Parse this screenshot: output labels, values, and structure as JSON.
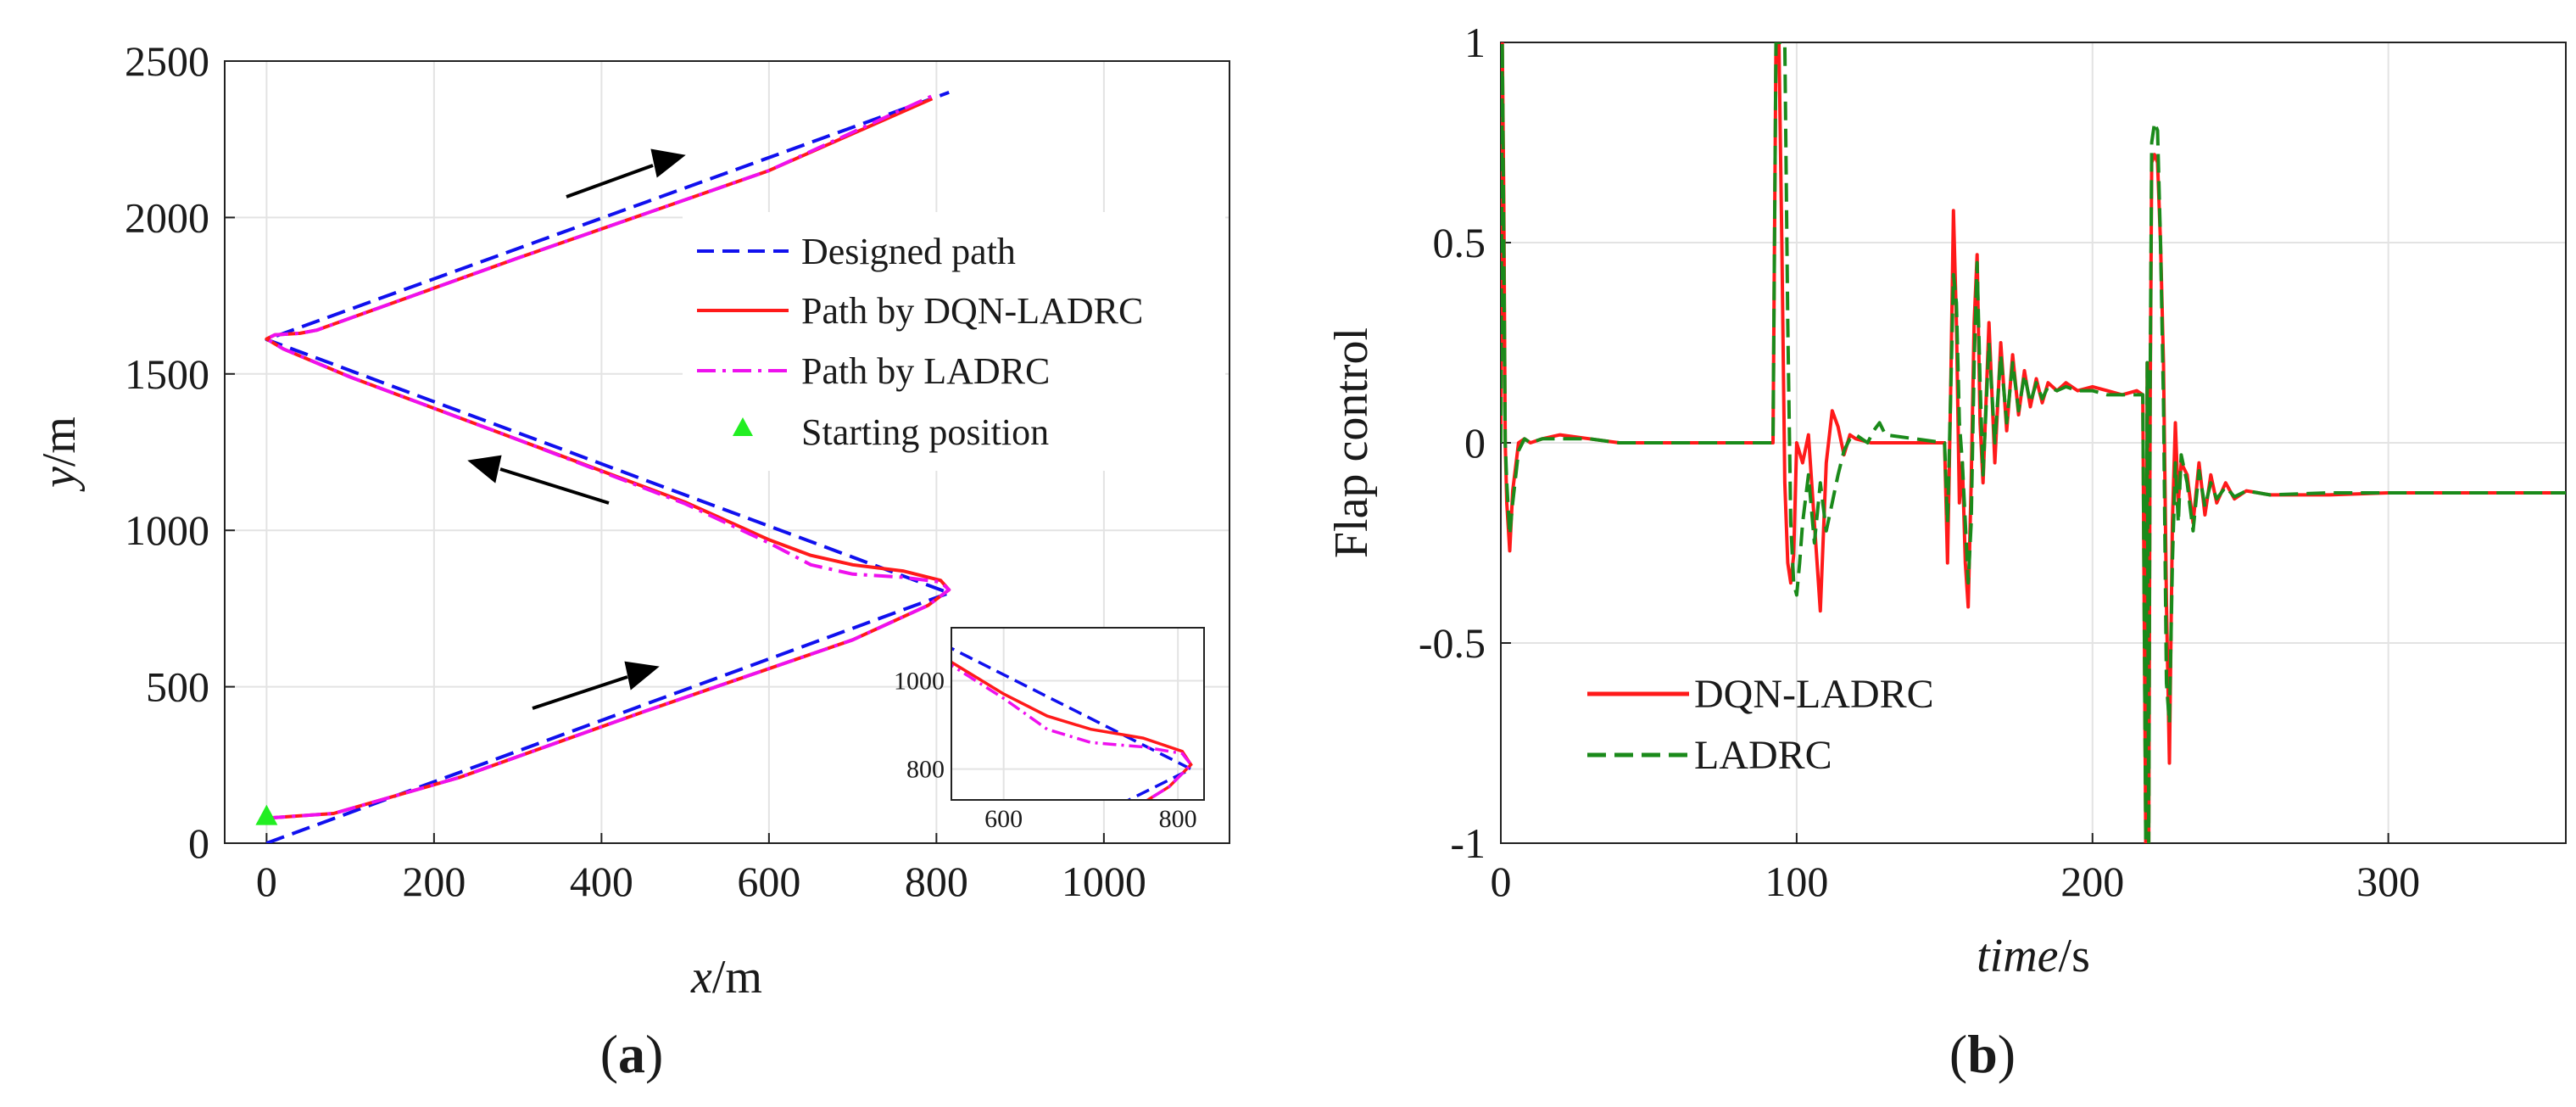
{
  "chart_data": [
    {
      "type": "line",
      "panel_label": "(a)",
      "xlabel": "x/m",
      "ylabel": "y/m",
      "xlim": [
        -50,
        1150
      ],
      "ylim": [
        0,
        2500
      ],
      "xticks": [
        0,
        200,
        400,
        600,
        800,
        1000
      ],
      "yticks": [
        0,
        500,
        1000,
        1500,
        2000,
        2500
      ],
      "grid": true,
      "legend_position": "right",
      "series": [
        {
          "name": "Designed path",
          "style": "dashed",
          "color": "#1010ee",
          "x": [
            0,
            815,
            0,
            815
          ],
          "y": [
            0,
            800,
            1610,
            2400
          ]
        },
        {
          "name": "Path by DQN-LADRC",
          "style": "solid",
          "color": "#ff1a1a",
          "x": [
            0,
            80,
            230,
            450,
            700,
            790,
            815,
            805,
            760,
            700,
            650,
            600,
            500,
            300,
            100,
            20,
            0,
            10,
            40,
            60,
            300,
            600,
            795
          ],
          "y": [
            80,
            95,
            210,
            420,
            650,
            760,
            810,
            840,
            870,
            890,
            920,
            970,
            1090,
            1290,
            1490,
            1580,
            1612,
            1625,
            1630,
            1640,
            1870,
            2150,
            2380
          ]
        },
        {
          "name": "Path by LADRC",
          "style": "dashdot",
          "color": "#ee10ee",
          "x": [
            0,
            80,
            230,
            450,
            700,
            790,
            815,
            805,
            760,
            700,
            650,
            600,
            500,
            300,
            100,
            20,
            0,
            10,
            40,
            60,
            300,
            600,
            800
          ],
          "y": [
            80,
            95,
            210,
            420,
            650,
            760,
            810,
            835,
            850,
            860,
            890,
            960,
            1085,
            1290,
            1490,
            1580,
            1612,
            1625,
            1630,
            1640,
            1870,
            2150,
            2395
          ]
        },
        {
          "name": "Starting position",
          "style": "marker",
          "marker": "triangle",
          "color": "#22ee22",
          "x": [
            0
          ],
          "y": [
            85
          ]
        }
      ],
      "inset": {
        "xlim": [
          540,
          830
        ],
        "ylim": [
          730,
          1120
        ],
        "xticks": [
          600,
          800
        ],
        "yticks": [
          800,
          1000
        ]
      }
    },
    {
      "type": "line",
      "panel_label": "(b)",
      "xlabel": "time/s",
      "ylabel": "Flap control",
      "xlim": [
        0,
        360
      ],
      "ylim": [
        -1,
        1
      ],
      "xticks": [
        0,
        100,
        200,
        300
      ],
      "yticks": [
        -1,
        -0.5,
        0,
        0.5,
        1
      ],
      "grid": true,
      "legend_position": "bottom-left",
      "series": [
        {
          "name": "DQN-LADRC",
          "style": "solid",
          "color": "#ff1a1a",
          "x": [
            0,
            0.5,
            1,
            1.5,
            2,
            3,
            4,
            6,
            8,
            10,
            14,
            20,
            30,
            40,
            92,
            93,
            94,
            95,
            96,
            97,
            98,
            99,
            100,
            102,
            104,
            106,
            108,
            110,
            112,
            114,
            116,
            118,
            120,
            125,
            150,
            151,
            152,
            153,
            154,
            155,
            156,
            157,
            158,
            159,
            160,
            161,
            162,
            163,
            165,
            167,
            169,
            171,
            173,
            175,
            177,
            179,
            181,
            183,
            185,
            188,
            191,
            195,
            200,
            205,
            210,
            215,
            217,
            218,
            218.5,
            219,
            219.5,
            220,
            221,
            222,
            223,
            224,
            225,
            226,
            227,
            228,
            229,
            230,
            232,
            234,
            236,
            238,
            240,
            242,
            245,
            248,
            252,
            260,
            280,
            300,
            330,
            360
          ],
          "y": [
            0,
            1,
            0.6,
            0,
            -0.15,
            -0.27,
            -0.12,
            0,
            0.01,
            0,
            0.01,
            0.02,
            0.01,
            0,
            0,
            1,
            1,
            0.5,
            -0.1,
            -0.3,
            -0.35,
            -0.28,
            0,
            -0.05,
            0.02,
            -0.2,
            -0.42,
            -0.05,
            0.08,
            0.04,
            -0.03,
            0.02,
            0.01,
            0,
            0,
            -0.3,
            0.1,
            0.58,
            0.3,
            -0.15,
            -0.05,
            -0.3,
            -0.41,
            -0.1,
            0.3,
            0.47,
            0.05,
            -0.1,
            0.3,
            -0.05,
            0.25,
            0.03,
            0.22,
            0.07,
            0.18,
            0.09,
            0.16,
            0.1,
            0.15,
            0.13,
            0.15,
            0.13,
            0.14,
            0.13,
            0.12,
            0.13,
            0.12,
            -1,
            0.2,
            -1,
            0.1,
            0.7,
            0.72,
            0.7,
            0.5,
            0.2,
            -0.4,
            -0.8,
            -0.2,
            0.05,
            -0.15,
            -0.05,
            -0.08,
            -0.2,
            -0.05,
            -0.18,
            -0.08,
            -0.15,
            -0.1,
            -0.14,
            -0.12,
            -0.13,
            -0.13,
            -0.125,
            -0.125,
            -0.125
          ]
        },
        {
          "name": "LADRC",
          "style": "dashed",
          "color": "#1a8a1a",
          "x": [
            0,
            0.5,
            1,
            1.5,
            2,
            3,
            4,
            6,
            8,
            10,
            14,
            20,
            30,
            40,
            92,
            93,
            94,
            96,
            97,
            98,
            99,
            100,
            101,
            102,
            104,
            106,
            108,
            110,
            112,
            114,
            116,
            118,
            120,
            122,
            124,
            126,
            128,
            130,
            150,
            151,
            152,
            153,
            154,
            155,
            156,
            157,
            158,
            159,
            160,
            161,
            162,
            163,
            165,
            167,
            169,
            171,
            173,
            175,
            177,
            179,
            181,
            183,
            185,
            188,
            191,
            195,
            200,
            205,
            210,
            215,
            217,
            218,
            218.5,
            219,
            219.5,
            220,
            221,
            222,
            223,
            224,
            225,
            226,
            227,
            228,
            229,
            230,
            232,
            234,
            236,
            238,
            240,
            242,
            245,
            248,
            252,
            260,
            280,
            300,
            330,
            360
          ],
          "y": [
            0,
            1,
            0.5,
            0,
            -0.1,
            -0.23,
            -0.15,
            -0.02,
            0.01,
            0,
            0.01,
            0.01,
            0.01,
            0,
            0,
            1,
            1,
            1,
            0.3,
            -0.2,
            -0.35,
            -0.38,
            -0.3,
            -0.2,
            -0.08,
            -0.25,
            -0.1,
            -0.22,
            -0.15,
            -0.08,
            -0.02,
            0.01,
            0.02,
            0.01,
            0,
            0.03,
            0.05,
            0.02,
            0,
            -0.2,
            0.1,
            0.42,
            0.35,
            0.05,
            -0.05,
            -0.2,
            -0.35,
            -0.2,
            0.2,
            0.45,
            0.15,
            -0.08,
            0.25,
            0,
            0.22,
            0.05,
            0.2,
            0.08,
            0.17,
            0.1,
            0.15,
            0.11,
            0.14,
            0.13,
            0.14,
            0.13,
            0.13,
            0.12,
            0.12,
            0.12,
            0.12,
            -1,
            0.2,
            -1,
            0.15,
            0.75,
            0.8,
            0.78,
            0.5,
            0.1,
            -0.6,
            -0.7,
            -0.3,
            -0.05,
            -0.2,
            -0.03,
            -0.1,
            -0.22,
            -0.07,
            -0.16,
            -0.1,
            -0.14,
            -0.11,
            -0.135,
            -0.12,
            -0.13,
            -0.125,
            -0.125,
            -0.125,
            -0.125
          ]
        }
      ]
    }
  ]
}
